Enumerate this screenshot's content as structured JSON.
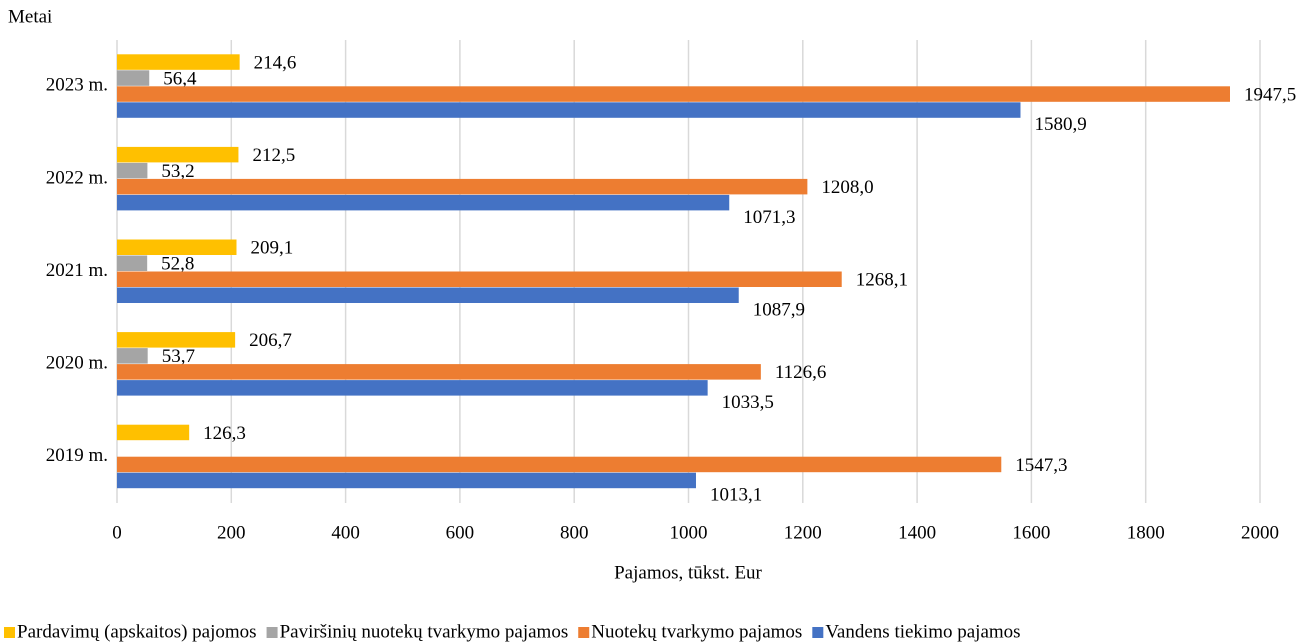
{
  "chart_data": {
    "type": "bar",
    "orientation": "horizontal",
    "y_axis_label": "Metai",
    "x_axis_label": "Pajamos, tūkst. Eur",
    "categories": [
      "2023 m.",
      "2022 m.",
      "2021 m.",
      "2020 m.",
      "2019 m."
    ],
    "series": [
      {
        "name": "Pardavimų (apskaitos) pajomos",
        "color": "#ffc000",
        "values": [
          214.6,
          212.5,
          209.1,
          206.7,
          126.3
        ],
        "value_labels": [
          "214,6",
          "212,5",
          "209,1",
          "206,7",
          "126,3"
        ]
      },
      {
        "name": "Paviršinių nuotekų tvarkymo pajamos",
        "color": "#a5a5a5",
        "values": [
          56.4,
          53.2,
          52.8,
          53.7,
          null
        ],
        "value_labels": [
          "56,4",
          "53,2",
          "52,8",
          "53,7",
          null
        ]
      },
      {
        "name": "Nuotekų tvarkymo pajamos",
        "color": "#ed7d31",
        "values": [
          1947.5,
          1208.0,
          1268.1,
          1126.6,
          1547.3
        ],
        "value_labels": [
          "1947,5",
          "1208,0",
          "1268,1",
          "1126,6",
          "1547,3"
        ]
      },
      {
        "name": "Vandens tiekimo pajamos",
        "color": "#4472c4",
        "values": [
          1580.9,
          1071.3,
          1087.9,
          1033.5,
          1013.1
        ],
        "value_labels": [
          "1580,9",
          "1071,3",
          "1087,9",
          "1033,5",
          "1013,1"
        ]
      }
    ],
    "xlim": [
      0,
      2000
    ],
    "xticks": [
      0,
      200,
      400,
      600,
      800,
      1000,
      1200,
      1400,
      1600,
      1800,
      2000
    ],
    "grid": true,
    "legend": "bottom"
  }
}
